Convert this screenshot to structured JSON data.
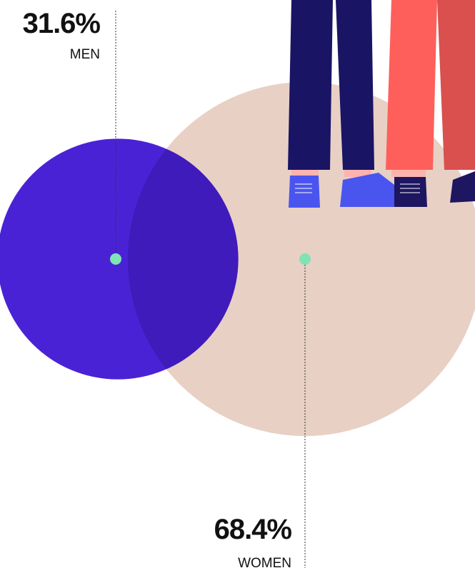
{
  "chart_data": {
    "type": "proportional-circles",
    "categories": [
      "MEN",
      "WOMEN"
    ],
    "values": [
      31.6,
      68.4
    ],
    "value_labels": [
      "31.6%",
      "68.4%"
    ],
    "colors": [
      "#4a22d6",
      "#e8d0c5"
    ]
  }
}
